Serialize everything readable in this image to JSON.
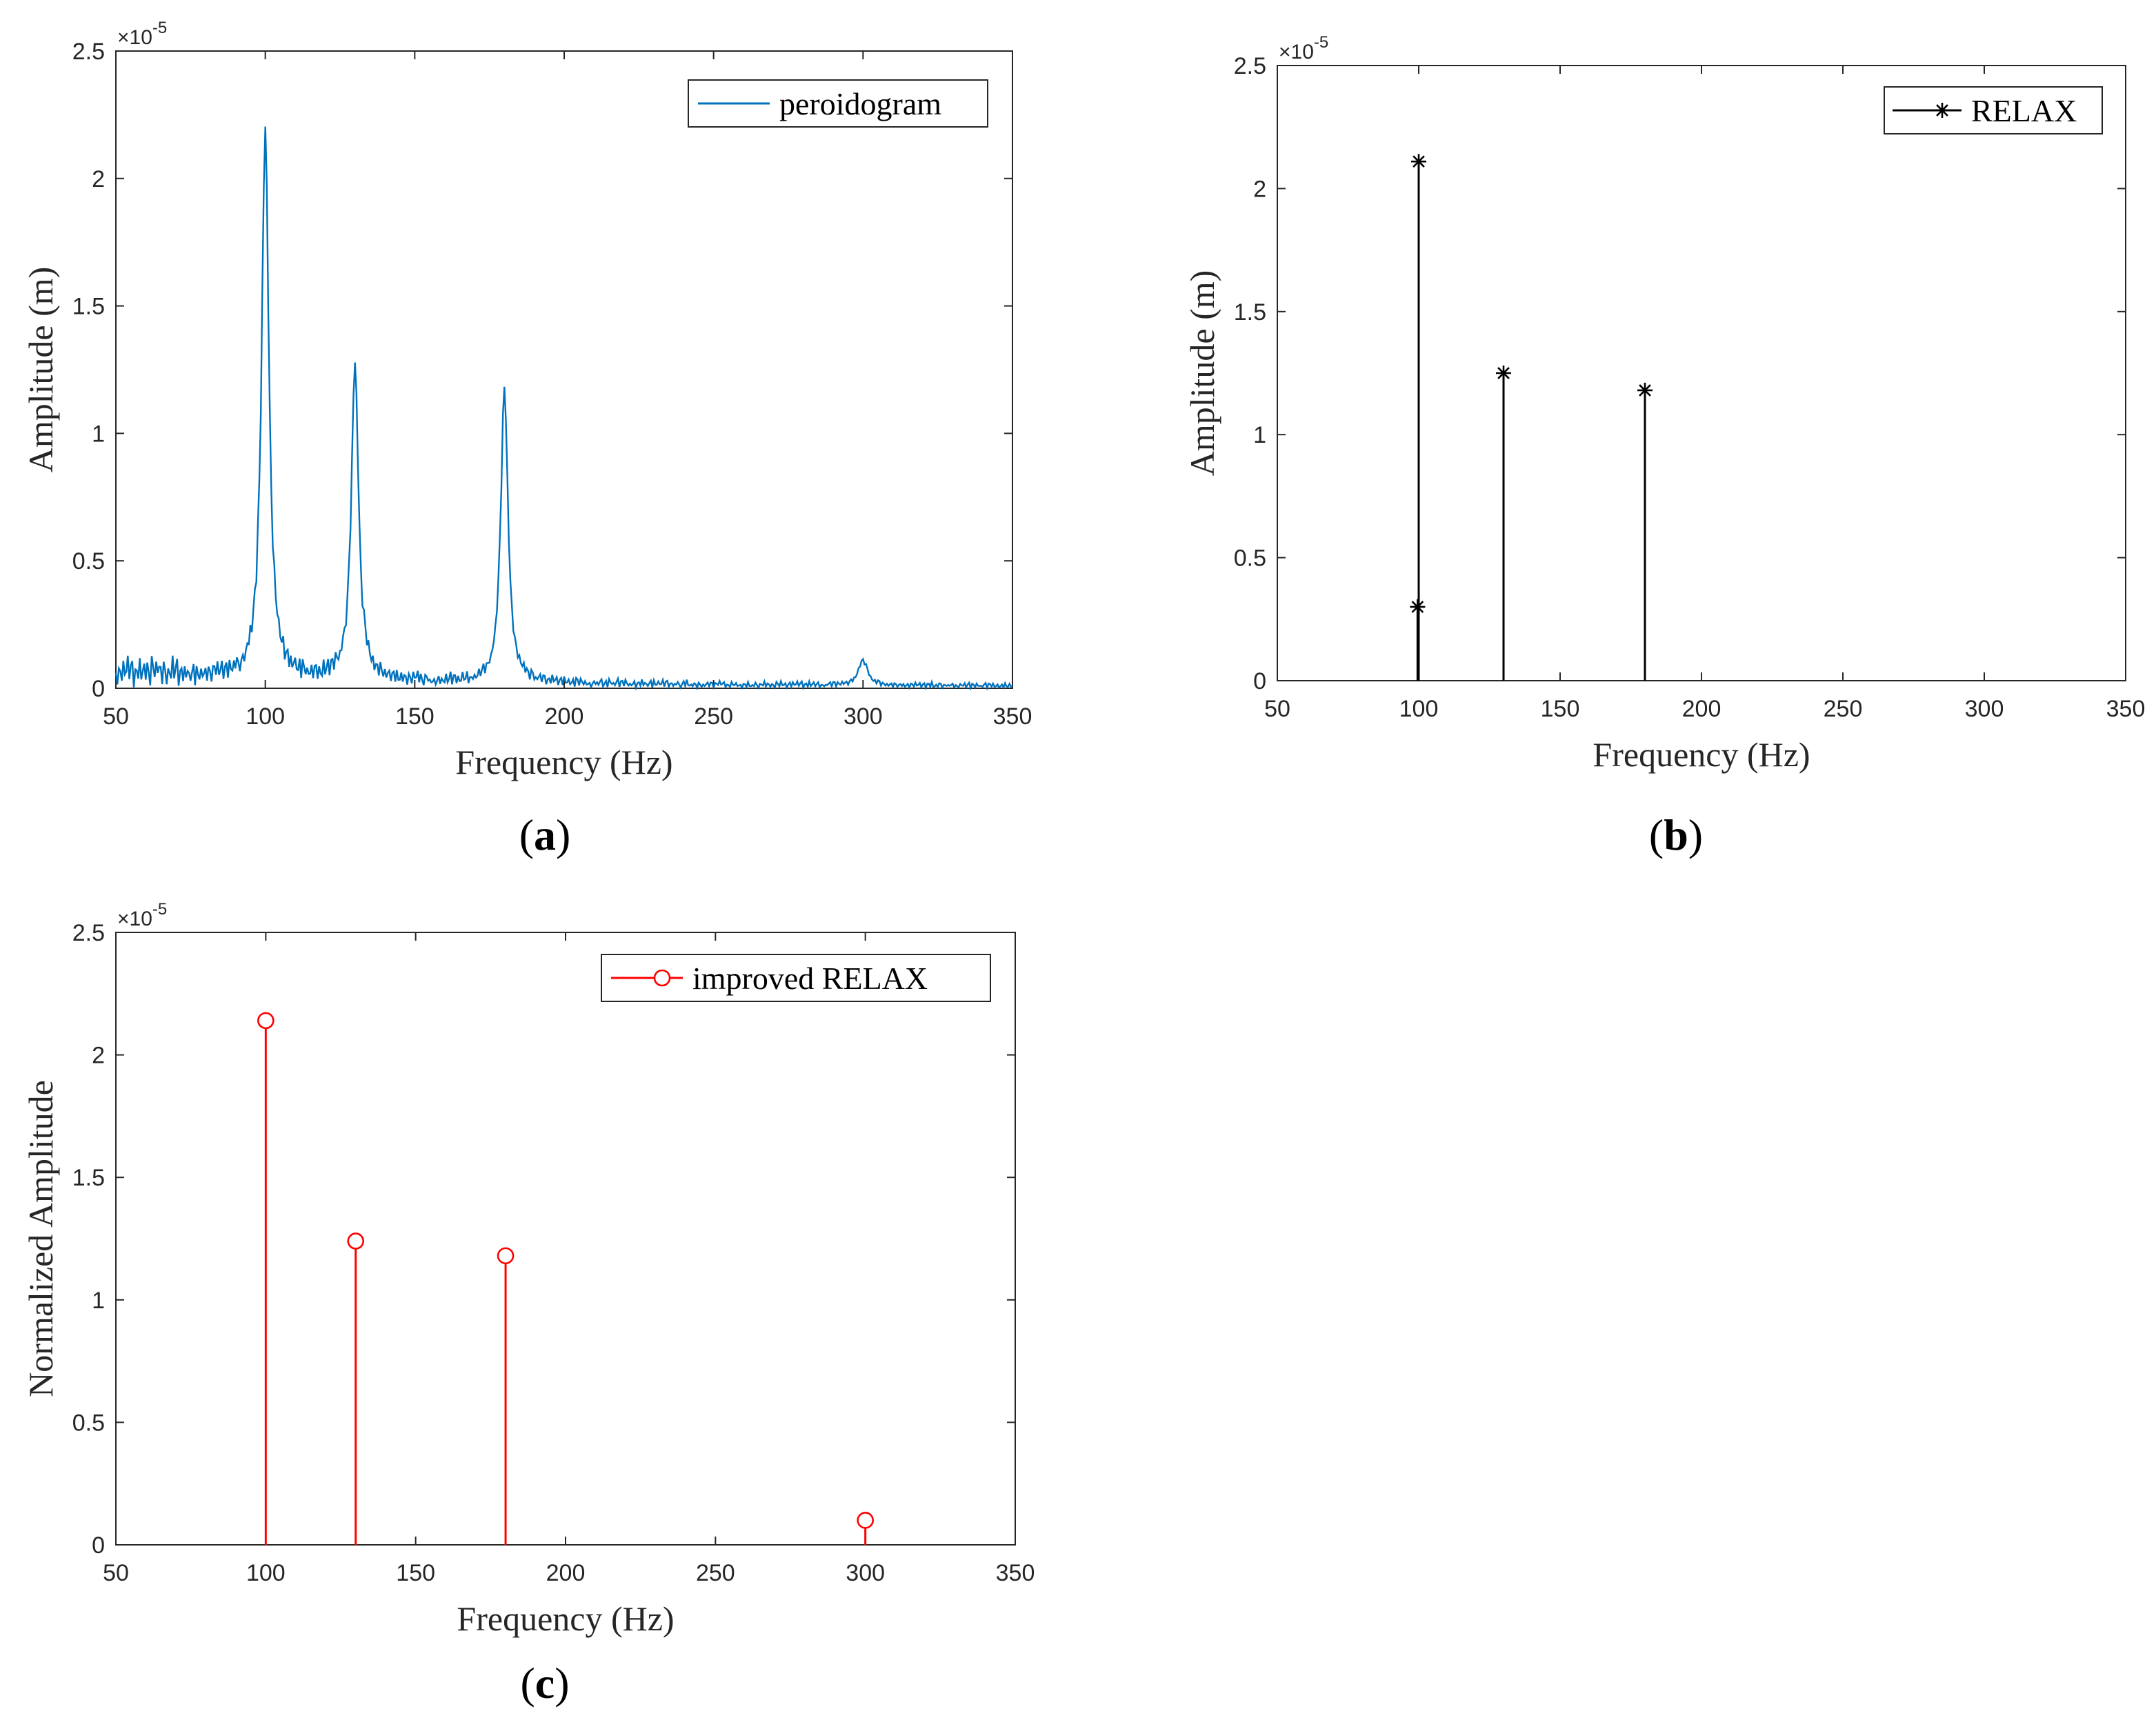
{
  "chart_data": [
    {
      "id": "a",
      "type": "line",
      "panel_label_open": "(",
      "panel_label_letter": "a",
      "panel_label_close": ")",
      "xlabel": "Frequency (Hz)",
      "ylabel": "Amplitude (m)",
      "y_exponent_base": "×10",
      "y_exponent_power": "-5",
      "xlim": [
        50,
        350
      ],
      "ylim": [
        0,
        2.5
      ],
      "xticks": [
        50,
        100,
        150,
        200,
        250,
        300,
        350
      ],
      "xtick_labels": [
        "50",
        "100",
        "150",
        "200",
        "250",
        "300",
        "350"
      ],
      "yticks": [
        0,
        0.5,
        1,
        1.5,
        2,
        2.5
      ],
      "ytick_labels": [
        "0",
        "0.5",
        "1",
        "1.5",
        "2",
        "2.5"
      ],
      "legend": "peroidogram",
      "legend_position": "top-right",
      "color": "#0072BD",
      "peaks": [
        {
          "f": 100,
          "amp": 2.15,
          "width": 1.6
        },
        {
          "f": 130,
          "amp": 1.24,
          "width": 1.6
        },
        {
          "f": 180,
          "amp": 1.15,
          "width": 1.6
        },
        {
          "f": 300,
          "amp": 0.1,
          "width": 2.0
        }
      ]
    },
    {
      "id": "b",
      "type": "stem",
      "panel_label_open": "(",
      "panel_label_letter": "b",
      "panel_label_close": ")",
      "xlabel": "Frequency (Hz)",
      "ylabel": "Amplitude (m)",
      "y_exponent_base": "×10",
      "y_exponent_power": "-5",
      "xlim": [
        50,
        350
      ],
      "ylim": [
        0,
        2.5
      ],
      "xticks": [
        50,
        100,
        150,
        200,
        250,
        300,
        350
      ],
      "xtick_labels": [
        "50",
        "100",
        "150",
        "200",
        "250",
        "300",
        "350"
      ],
      "yticks": [
        0,
        0.5,
        1,
        1.5,
        2,
        2.5
      ],
      "ytick_labels": [
        "0",
        "0.5",
        "1",
        "1.5",
        "2",
        "2.5"
      ],
      "legend": "RELAX",
      "legend_position": "top-right",
      "marker": "asterisk",
      "color": "#000000",
      "x": [
        100,
        99.6,
        130,
        180
      ],
      "y": [
        2.11,
        0.3,
        1.25,
        1.18
      ]
    },
    {
      "id": "c",
      "type": "stem",
      "panel_label_open": "(",
      "panel_label_letter": "c",
      "panel_label_close": ")",
      "xlabel": "Frequency (Hz)",
      "ylabel": "Normalized Amplitude",
      "y_exponent_base": "×10",
      "y_exponent_power": "-5",
      "xlim": [
        50,
        350
      ],
      "ylim": [
        0,
        2.5
      ],
      "xticks": [
        50,
        100,
        150,
        200,
        250,
        300,
        350
      ],
      "xtick_labels": [
        "50",
        "100",
        "150",
        "200",
        "250",
        "300",
        "350"
      ],
      "yticks": [
        0,
        0.5,
        1,
        1.5,
        2,
        2.5
      ],
      "ytick_labels": [
        "0",
        "0.5",
        "1",
        "1.5",
        "2",
        "2.5"
      ],
      "legend": "improved RELAX",
      "legend_position": "top-right",
      "marker": "circle",
      "color": "#FF0000",
      "x": [
        100,
        130,
        180,
        300
      ],
      "y": [
        2.14,
        1.24,
        1.18,
        0.1
      ]
    }
  ]
}
